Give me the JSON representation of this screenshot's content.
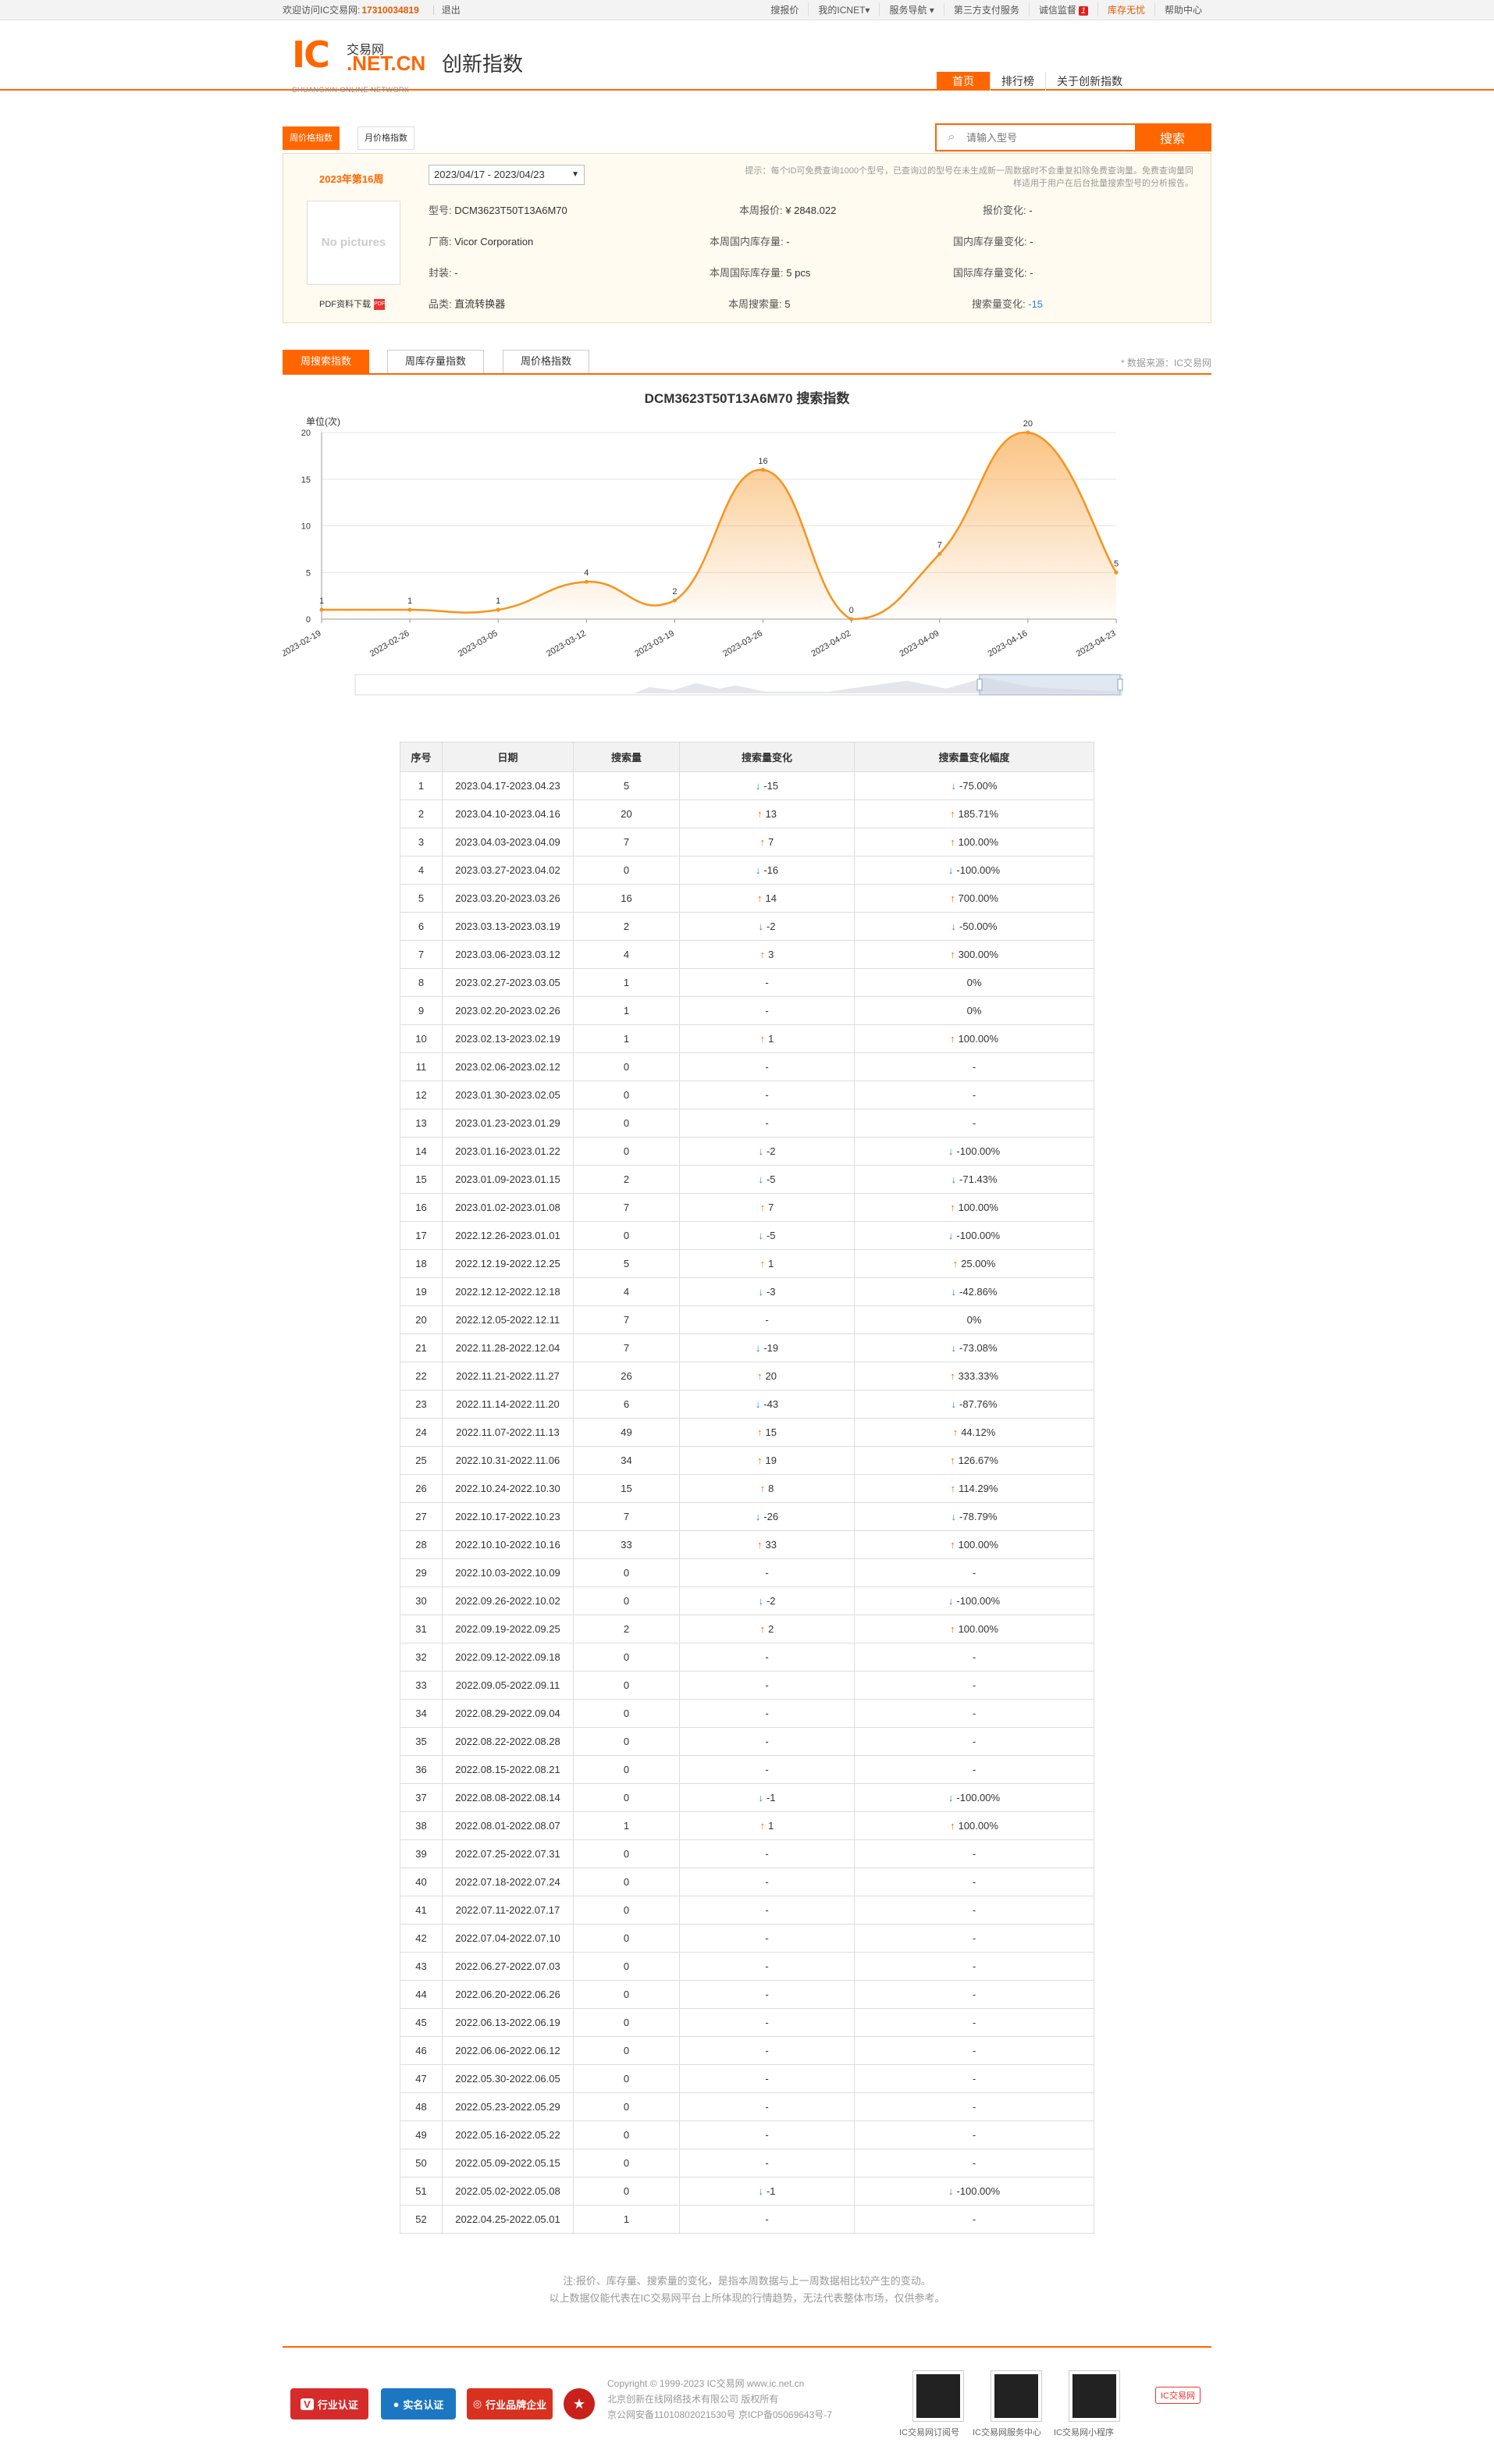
{
  "topbar": {
    "welcome": "欢迎访问IC交易网:",
    "phone": "17310034819",
    "logout": "退出",
    "links": [
      "搜报价",
      "我的ICNET▾",
      "服务导航 ▾",
      "第三方支付服务",
      "诚信监督",
      "库存无忧",
      "帮助中心"
    ],
    "badge": "1"
  },
  "logo": {
    "ic": "IC",
    "cn": "交易网",
    "domain": ".NET.CN",
    "en": "CHUANGXIN ONLINE NETWORK"
  },
  "page_title": "创新指数",
  "nav": [
    "首页",
    "排行榜",
    "关于创新指数"
  ],
  "price_tabs": [
    "周价格指数",
    "月价格指数"
  ],
  "search": {
    "placeholder": "请输入型号",
    "button": "搜索"
  },
  "info": {
    "week": "2023年第16周",
    "date_range": "2023/04/17 - 2023/04/23",
    "nopic": "No pictures",
    "pdf": "PDF资料下载",
    "tip": "提示：每个ID可免费查询1000个型号，已查询过的型号在未生成新一周数据时不会重复扣除免费查询量。免费查询量同样适用于用户在后台批量搜索型号的分析报告。",
    "model_label": "型号:",
    "model": "DCM3623T50T13A6M70",
    "maker_label": "厂商:",
    "maker": "Vicor Corporation",
    "pkg_label": "封装:",
    "pkg": "-",
    "cat_label": "品类:",
    "cat": "直流转换器",
    "price_label": "本周报价:",
    "price": "¥ 2848.022",
    "dom_label": "本周国内库存量:",
    "dom": "-",
    "intl_label": "本周国际库存量:",
    "intl": "5 pcs",
    "sch_label": "本周搜索量:",
    "sch": "5",
    "pchg_label": "报价变化:",
    "pchg": "-",
    "dchg_label": "国内库存量变化:",
    "dchg": "-",
    "ichg_label": "国际库存量变化:",
    "ichg": "-",
    "schg_label": "搜索量变化:",
    "schg": "-15"
  },
  "index_tabs": [
    "周搜索指数",
    "周库存量指数",
    "周价格指数"
  ],
  "source": "* 数据来源：IC交易网",
  "chart_data": {
    "type": "area",
    "title": "DCM3623T50T13A6M70 搜索指数",
    "ylabel": "单位(次)",
    "ylim": [
      0,
      20
    ],
    "yticks": [
      0,
      5,
      10,
      15,
      20
    ],
    "categories": [
      "2023-02-19",
      "2023-02-26",
      "2023-03-05",
      "2023-03-12",
      "2023-03-19",
      "2023-03-26",
      "2023-04-02",
      "2023-04-09",
      "2023-04-16",
      "2023-04-23"
    ],
    "values": [
      1,
      1,
      1,
      4,
      2,
      16,
      0,
      7,
      20,
      5
    ],
    "color": "#f7931e"
  },
  "table": {
    "headers": [
      "序号",
      "日期",
      "搜索量",
      "搜索量变化",
      "搜索量变化幅度"
    ],
    "rows": [
      [
        "1",
        "2023.04.17-2023.04.23",
        "5",
        "d",
        "-15",
        "d",
        "-75.00%"
      ],
      [
        "2",
        "2023.04.10-2023.04.16",
        "20",
        "u",
        "13",
        "u",
        "185.71%"
      ],
      [
        "3",
        "2023.04.03-2023.04.09",
        "7",
        "u",
        "7",
        "u",
        "100.00%"
      ],
      [
        "4",
        "2023.03.27-2023.04.02",
        "0",
        "d",
        "-16",
        "d",
        "-100.00%"
      ],
      [
        "5",
        "2023.03.20-2023.03.26",
        "16",
        "u",
        "14",
        "u",
        "700.00%"
      ],
      [
        "6",
        "2023.03.13-2023.03.19",
        "2",
        "d",
        "-2",
        "d",
        "-50.00%"
      ],
      [
        "7",
        "2023.03.06-2023.03.12",
        "4",
        "u",
        "3",
        "u",
        "300.00%"
      ],
      [
        "8",
        "2023.02.27-2023.03.05",
        "1",
        "",
        "-",
        "",
        "0%"
      ],
      [
        "9",
        "2023.02.20-2023.02.26",
        "1",
        "",
        "-",
        "",
        "0%"
      ],
      [
        "10",
        "2023.02.13-2023.02.19",
        "1",
        "u",
        "1",
        "u",
        "100.00%"
      ],
      [
        "11",
        "2023.02.06-2023.02.12",
        "0",
        "",
        "-",
        "",
        "-"
      ],
      [
        "12",
        "2023.01.30-2023.02.05",
        "0",
        "",
        "-",
        "",
        "-"
      ],
      [
        "13",
        "2023.01.23-2023.01.29",
        "0",
        "",
        "-",
        "",
        "-"
      ],
      [
        "14",
        "2023.01.16-2023.01.22",
        "0",
        "d",
        "-2",
        "d",
        "-100.00%"
      ],
      [
        "15",
        "2023.01.09-2023.01.15",
        "2",
        "d",
        "-5",
        "d",
        "-71.43%"
      ],
      [
        "16",
        "2023.01.02-2023.01.08",
        "7",
        "u",
        "7",
        "u",
        "100.00%"
      ],
      [
        "17",
        "2022.12.26-2023.01.01",
        "0",
        "d",
        "-5",
        "d",
        "-100.00%"
      ],
      [
        "18",
        "2022.12.19-2022.12.25",
        "5",
        "u",
        "1",
        "u",
        "25.00%"
      ],
      [
        "19",
        "2022.12.12-2022.12.18",
        "4",
        "d",
        "-3",
        "d",
        "-42.86%"
      ],
      [
        "20",
        "2022.12.05-2022.12.11",
        "7",
        "",
        "-",
        "",
        "0%"
      ],
      [
        "21",
        "2022.11.28-2022.12.04",
        "7",
        "d",
        "-19",
        "d",
        "-73.08%"
      ],
      [
        "22",
        "2022.11.21-2022.11.27",
        "26",
        "u",
        "20",
        "u",
        "333.33%"
      ],
      [
        "23",
        "2022.11.14-2022.11.20",
        "6",
        "d",
        "-43",
        "d",
        "-87.76%"
      ],
      [
        "24",
        "2022.11.07-2022.11.13",
        "49",
        "u",
        "15",
        "u",
        "44.12%"
      ],
      [
        "25",
        "2022.10.31-2022.11.06",
        "34",
        "u",
        "19",
        "u",
        "126.67%"
      ],
      [
        "26",
        "2022.10.24-2022.10.30",
        "15",
        "u",
        "8",
        "u",
        "114.29%"
      ],
      [
        "27",
        "2022.10.17-2022.10.23",
        "7",
        "d",
        "-26",
        "d",
        "-78.79%"
      ],
      [
        "28",
        "2022.10.10-2022.10.16",
        "33",
        "u",
        "33",
        "u",
        "100.00%"
      ],
      [
        "29",
        "2022.10.03-2022.10.09",
        "0",
        "",
        "-",
        "",
        "-"
      ],
      [
        "30",
        "2022.09.26-2022.10.02",
        "0",
        "d",
        "-2",
        "d",
        "-100.00%"
      ],
      [
        "31",
        "2022.09.19-2022.09.25",
        "2",
        "u",
        "2",
        "u",
        "100.00%"
      ],
      [
        "32",
        "2022.09.12-2022.09.18",
        "0",
        "",
        "-",
        "",
        "-"
      ],
      [
        "33",
        "2022.09.05-2022.09.11",
        "0",
        "",
        "-",
        "",
        "-"
      ],
      [
        "34",
        "2022.08.29-2022.09.04",
        "0",
        "",
        "-",
        "",
        "-"
      ],
      [
        "35",
        "2022.08.22-2022.08.28",
        "0",
        "",
        "-",
        "",
        "-"
      ],
      [
        "36",
        "2022.08.15-2022.08.21",
        "0",
        "",
        "-",
        "",
        "-"
      ],
      [
        "37",
        "2022.08.08-2022.08.14",
        "0",
        "d",
        "-1",
        "d",
        "-100.00%"
      ],
      [
        "38",
        "2022.08.01-2022.08.07",
        "1",
        "u",
        "1",
        "u",
        "100.00%"
      ],
      [
        "39",
        "2022.07.25-2022.07.31",
        "0",
        "",
        "-",
        "",
        "-"
      ],
      [
        "40",
        "2022.07.18-2022.07.24",
        "0",
        "",
        "-",
        "",
        "-"
      ],
      [
        "41",
        "2022.07.11-2022.07.17",
        "0",
        "",
        "-",
        "",
        "-"
      ],
      [
        "42",
        "2022.07.04-2022.07.10",
        "0",
        "",
        "-",
        "",
        "-"
      ],
      [
        "43",
        "2022.06.27-2022.07.03",
        "0",
        "",
        "-",
        "",
        "-"
      ],
      [
        "44",
        "2022.06.20-2022.06.26",
        "0",
        "",
        "-",
        "",
        "-"
      ],
      [
        "45",
        "2022.06.13-2022.06.19",
        "0",
        "",
        "-",
        "",
        "-"
      ],
      [
        "46",
        "2022.06.06-2022.06.12",
        "0",
        "",
        "-",
        "",
        "-"
      ],
      [
        "47",
        "2022.05.30-2022.06.05",
        "0",
        "",
        "-",
        "",
        "-"
      ],
      [
        "48",
        "2022.05.23-2022.05.29",
        "0",
        "",
        "-",
        "",
        "-"
      ],
      [
        "49",
        "2022.05.16-2022.05.22",
        "0",
        "",
        "-",
        "",
        "-"
      ],
      [
        "50",
        "2022.05.09-2022.05.15",
        "0",
        "",
        "-",
        "",
        "-"
      ],
      [
        "51",
        "2022.05.02-2022.05.08",
        "0",
        "d",
        "-1",
        "d",
        "-100.00%"
      ],
      [
        "52",
        "2022.04.25-2022.05.01",
        "1",
        "",
        "-",
        "",
        "-"
      ]
    ]
  },
  "note": [
    "注:报价、库存量、搜索量的变化，是指本周数据与上一周数据相比较产生的变动。",
    "以上数据仅能代表在IC交易网平台上所体现的行情趋势，无法代表整体市场，仅供参考。"
  ],
  "footer": {
    "certs": [
      "行业认证",
      "实名认证",
      "行业品牌企业"
    ],
    "copy": [
      "Copyright © 1999-2023 IC交易网 www.ic.net.cn",
      "北京创新在线网络技术有限公司 版权所有",
      "京公网安备11010802021530号  京ICP备05069643号-7"
    ],
    "qr_labels": [
      "IC交易网订阅号",
      "IC交易网服务中心",
      "IC交易网小程序"
    ],
    "weibo": "IC交易网"
  }
}
